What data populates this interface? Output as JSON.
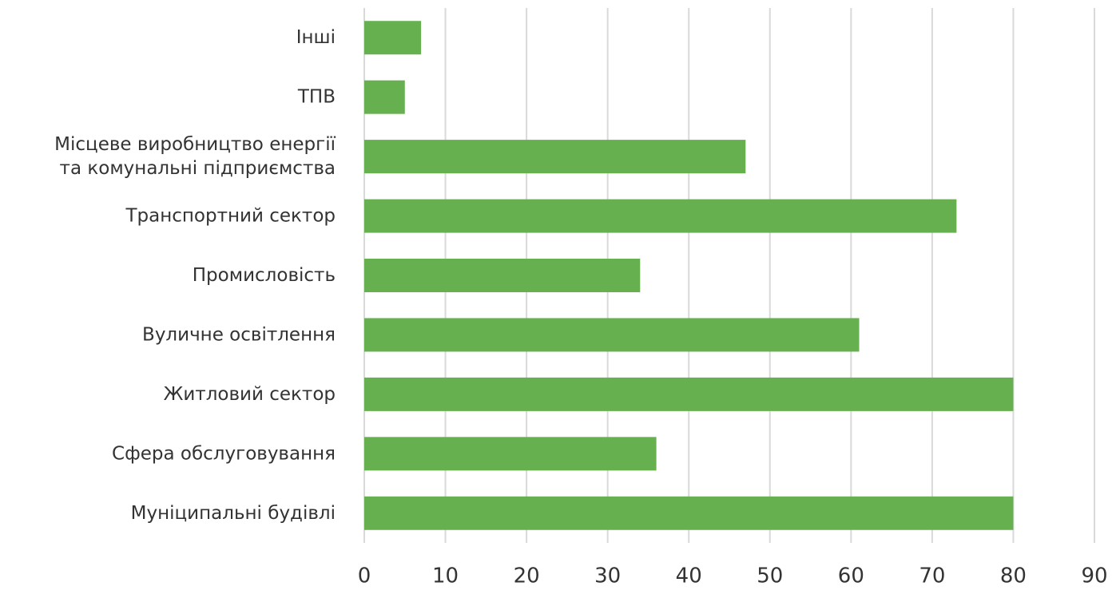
{
  "chart_data": {
    "type": "bar",
    "orientation": "horizontal",
    "categories": [
      "Інші",
      "ТПВ",
      "Місцеве виробництво енергії\nта комунальні підприємства",
      "Транспортний сектор",
      "Промисловість",
      "Вуличне освітлення",
      "Житловий сектор",
      "Сфера обслуговування",
      "Муніципальні будівлі"
    ],
    "values": [
      7,
      5,
      47,
      73,
      34,
      61,
      80,
      36,
      80
    ],
    "color": "#66b04f",
    "xlim": [
      0,
      90
    ],
    "xticks": [
      0,
      10,
      20,
      30,
      40,
      50,
      60,
      70,
      80,
      90
    ],
    "grid": true
  }
}
